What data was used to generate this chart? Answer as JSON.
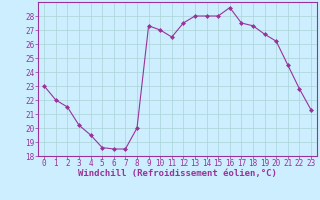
{
  "x": [
    0,
    1,
    2,
    3,
    4,
    5,
    6,
    7,
    8,
    9,
    10,
    11,
    12,
    13,
    14,
    15,
    16,
    17,
    18,
    19,
    20,
    21,
    22,
    23
  ],
  "y": [
    23,
    22,
    21.5,
    20.2,
    19.5,
    18.6,
    18.5,
    18.5,
    20.0,
    27.3,
    27.0,
    26.5,
    27.5,
    28.0,
    28.0,
    28.0,
    28.6,
    27.5,
    27.3,
    26.7,
    26.2,
    24.5,
    22.8,
    21.3
  ],
  "line_color": "#993399",
  "marker": "D",
  "marker_size": 2.0,
  "bg_color": "#cceeff",
  "grid_color": "#aad4d4",
  "xlabel": "Windchill (Refroidissement éolien,°C)",
  "xlabel_color": "#993399",
  "xlabel_fontsize": 6.5,
  "tick_color": "#993399",
  "tick_fontsize": 5.5,
  "ylim": [
    18,
    29
  ],
  "yticks": [
    18,
    19,
    20,
    21,
    22,
    23,
    24,
    25,
    26,
    27,
    28
  ],
  "xlim": [
    -0.5,
    23.5
  ],
  "xticks": [
    0,
    1,
    2,
    3,
    4,
    5,
    6,
    7,
    8,
    9,
    10,
    11,
    12,
    13,
    14,
    15,
    16,
    17,
    18,
    19,
    20,
    21,
    22,
    23
  ]
}
